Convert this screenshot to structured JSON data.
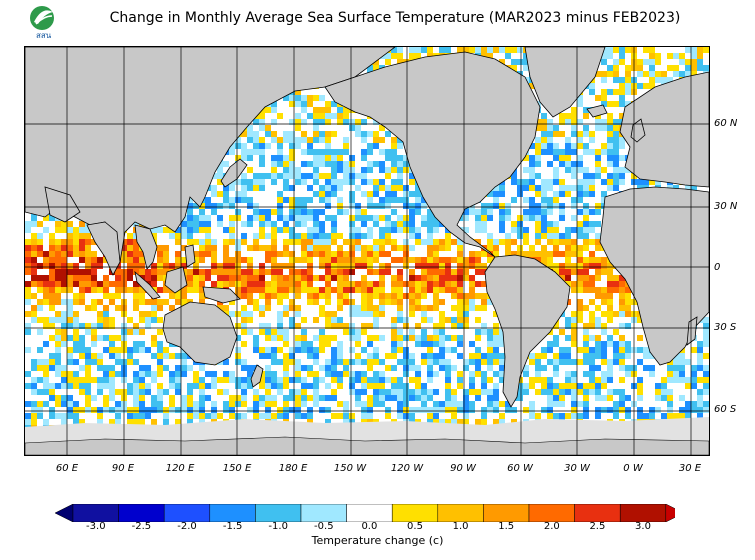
{
  "title": "Change in Monthly Average Sea Surface Temperature (MAR2023 minus FEB2023)",
  "logo": {
    "name": "organization-logo",
    "text": "สสน"
  },
  "lat_labels": [
    "60 N",
    "30 N",
    "0",
    "30 S",
    "60 S"
  ],
  "lon_labels": [
    "60 E",
    "90 E",
    "120 E",
    "150 E",
    "180 E",
    "150 W",
    "120 W",
    "90 W",
    "60 W",
    "30 W",
    "0 W",
    "30 E"
  ],
  "colorbar": {
    "title": "Temperature change  (c)",
    "ticks": [
      "-3.0",
      "-2.5",
      "-2.0",
      "-1.5",
      "-1.0",
      "-0.5",
      "0.0",
      "0.5",
      "1.0",
      "1.5",
      "2.0",
      "2.5",
      "3.0"
    ],
    "colors": [
      "#1010a0",
      "#0000cd",
      "#1e50ff",
      "#1e90ff",
      "#40c0f0",
      "#a0e8ff",
      "#ffffff",
      "#ffe000",
      "#ffc000",
      "#ff9a00",
      "#ff6a00",
      "#e83010",
      "#b01000"
    ],
    "under_color": "#000070",
    "over_color": "#c80000"
  },
  "colors": {
    "land": "#c8c8c8",
    "ice": "#e2e2e2",
    "coast": "#000000",
    "grid": "#000000"
  }
}
